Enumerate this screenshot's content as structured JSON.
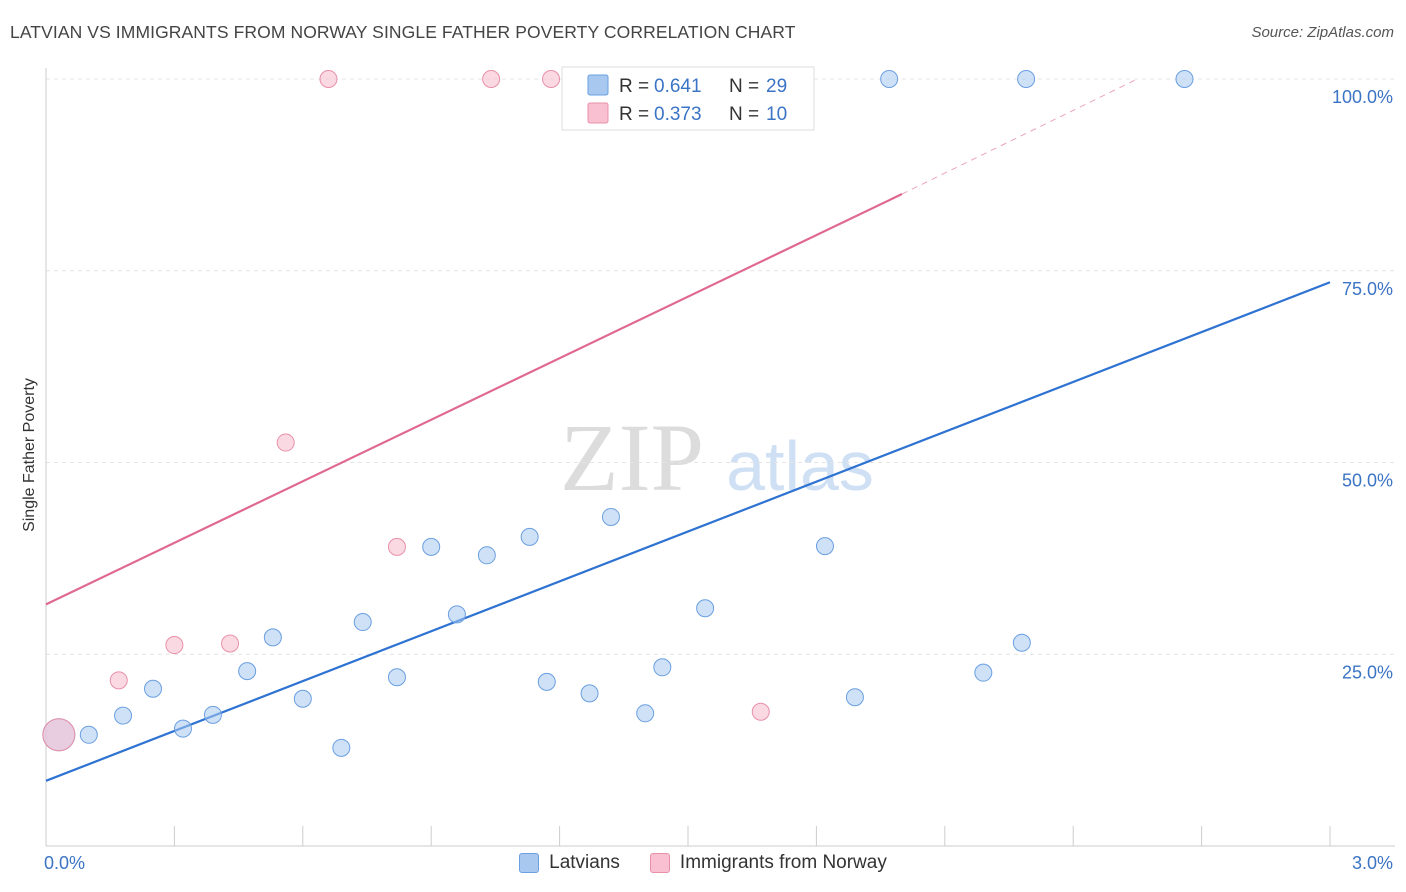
{
  "header": {
    "title": "LATVIAN VS IMMIGRANTS FROM NORWAY SINGLE FATHER POVERTY CORRELATION CHART",
    "source": "Source: ZipAtlas.com"
  },
  "watermark": {
    "zip": "ZIP",
    "atlas": "atlas"
  },
  "chart_data": {
    "type": "scatter",
    "title": "LATVIAN VS IMMIGRANTS FROM NORWAY SINGLE FATHER POVERTY CORRELATION CHART",
    "xlabel": "",
    "ylabel": "Single Father Poverty",
    "xlim": [
      0,
      3.0
    ],
    "ylim": [
      0,
      105
    ],
    "x_tick_labels": [
      {
        "value": 0,
        "label": "0.0%"
      },
      {
        "value": 3.0,
        "label": "3.0%"
      }
    ],
    "y_tick_labels": [
      {
        "value": 25,
        "label": "25.0%"
      },
      {
        "value": 50,
        "label": "50.0%"
      },
      {
        "value": 75,
        "label": "75.0%"
      },
      {
        "value": 100,
        "label": "100.0%"
      }
    ],
    "legend_stats": [
      {
        "r_label": "R =",
        "r": "0.641",
        "n_label": "N =",
        "n": "29",
        "color": "#a8c8f0",
        "stroke": "#6a9fe0"
      },
      {
        "r_label": "R =",
        "r": "0.373",
        "n_label": "N =",
        "n": "10",
        "color": "#f8c0d0",
        "stroke": "#e890a8"
      }
    ],
    "series": [
      {
        "name": "Latvians",
        "color": "#a8c8f0",
        "stroke": "#6a9fe0",
        "line_color": "#2e72d2",
        "trend": {
          "x0": 0.0,
          "y0": 8.5,
          "x1": 3.0,
          "y1": 73.5
        },
        "points": [
          {
            "x": 0.03,
            "y": 14.5,
            "big": true
          },
          {
            "x": 0.1,
            "y": 14.5
          },
          {
            "x": 0.18,
            "y": 17.0
          },
          {
            "x": 0.25,
            "y": 20.5
          },
          {
            "x": 0.32,
            "y": 15.3
          },
          {
            "x": 0.39,
            "y": 17.1
          },
          {
            "x": 0.47,
            "y": 22.8
          },
          {
            "x": 0.53,
            "y": 27.2
          },
          {
            "x": 0.6,
            "y": 19.2
          },
          {
            "x": 0.69,
            "y": 12.8
          },
          {
            "x": 0.74,
            "y": 29.2
          },
          {
            "x": 0.82,
            "y": 22.0
          },
          {
            "x": 0.9,
            "y": 39.0
          },
          {
            "x": 0.96,
            "y": 30.2
          },
          {
            "x": 1.03,
            "y": 37.9
          },
          {
            "x": 1.13,
            "y": 40.3
          },
          {
            "x": 1.17,
            "y": 21.4
          },
          {
            "x": 1.27,
            "y": 19.9
          },
          {
            "x": 1.32,
            "y": 42.9
          },
          {
            "x": 1.4,
            "y": 17.3
          },
          {
            "x": 1.44,
            "y": 23.3
          },
          {
            "x": 1.54,
            "y": 31.0
          },
          {
            "x": 1.82,
            "y": 39.1
          },
          {
            "x": 1.89,
            "y": 19.4
          },
          {
            "x": 1.97,
            "y": 100.0
          },
          {
            "x": 2.19,
            "y": 22.6
          },
          {
            "x": 2.28,
            "y": 26.5
          },
          {
            "x": 2.29,
            "y": 100.0
          },
          {
            "x": 2.66,
            "y": 100.0
          }
        ]
      },
      {
        "name": "Immigrants from Norway",
        "color": "#f8c0d0",
        "stroke": "#e890a8",
        "line_color": "#e06890",
        "trend": {
          "x0": 0.0,
          "y0": 31.5,
          "x1": 2.0,
          "y1": 85.0
        },
        "trend_ext": {
          "x0": 2.0,
          "y0": 85.0,
          "x1": 2.55,
          "y1": 100.0
        },
        "points": [
          {
            "x": 0.03,
            "y": 14.5,
            "big": true
          },
          {
            "x": 0.17,
            "y": 21.6
          },
          {
            "x": 0.3,
            "y": 26.2
          },
          {
            "x": 0.43,
            "y": 26.4
          },
          {
            "x": 0.56,
            "y": 52.6
          },
          {
            "x": 0.66,
            "y": 100.0
          },
          {
            "x": 0.82,
            "y": 39.0
          },
          {
            "x": 1.04,
            "y": 100.0
          },
          {
            "x": 1.18,
            "y": 100.0
          },
          {
            "x": 1.67,
            "y": 17.5
          }
        ]
      }
    ]
  }
}
